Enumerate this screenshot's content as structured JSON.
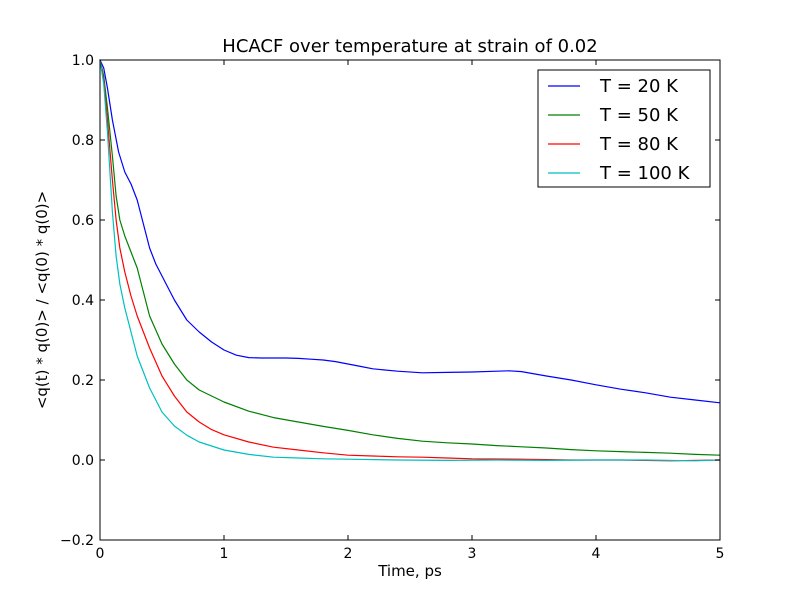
{
  "chart_data": {
    "type": "line",
    "title": "HCACF over temperature at strain of 0.02",
    "xlabel": "Time, ps",
    "ylabel": "<q(t) * q(0)> / <q(0) * q(0)>",
    "xlim": [
      0,
      5
    ],
    "ylim": [
      -0.2,
      1.0
    ],
    "xticks": [
      0,
      1,
      2,
      3,
      4,
      5
    ],
    "xtick_labels": [
      "0",
      "1",
      "2",
      "3",
      "4",
      "5"
    ],
    "yticks": [
      -0.2,
      0.0,
      0.2,
      0.4,
      0.6,
      0.8,
      1.0
    ],
    "ytick_labels": [
      "−0.2",
      "0.0",
      "0.2",
      "0.4",
      "0.6",
      "0.8",
      "1.0"
    ],
    "grid": false,
    "legend_position": "top-right",
    "series": [
      {
        "name": "T = 20 K",
        "color": "#0000ff",
        "x": [
          0,
          0.03,
          0.06,
          0.1,
          0.15,
          0.2,
          0.25,
          0.3,
          0.35,
          0.4,
          0.45,
          0.5,
          0.6,
          0.7,
          0.8,
          0.9,
          1.0,
          1.1,
          1.2,
          1.3,
          1.4,
          1.5,
          1.6,
          1.7,
          1.8,
          1.9,
          2.0,
          2.1,
          2.2,
          2.4,
          2.6,
          2.8,
          3.0,
          3.2,
          3.3,
          3.4,
          3.6,
          3.8,
          4.0,
          4.2,
          4.4,
          4.6,
          4.8,
          5.0
        ],
        "y": [
          1.0,
          0.98,
          0.93,
          0.85,
          0.77,
          0.72,
          0.69,
          0.65,
          0.59,
          0.53,
          0.49,
          0.46,
          0.4,
          0.35,
          0.32,
          0.295,
          0.275,
          0.262,
          0.256,
          0.255,
          0.255,
          0.255,
          0.254,
          0.252,
          0.25,
          0.246,
          0.24,
          0.234,
          0.228,
          0.222,
          0.218,
          0.219,
          0.22,
          0.222,
          0.223,
          0.221,
          0.21,
          0.2,
          0.188,
          0.177,
          0.168,
          0.157,
          0.15,
          0.143
        ]
      },
      {
        "name": "T = 50 K",
        "color": "#008000",
        "x": [
          0,
          0.03,
          0.06,
          0.1,
          0.13,
          0.16,
          0.2,
          0.25,
          0.3,
          0.35,
          0.4,
          0.5,
          0.6,
          0.7,
          0.8,
          0.9,
          1.0,
          1.2,
          1.4,
          1.6,
          1.8,
          2.0,
          2.2,
          2.4,
          2.6,
          2.8,
          3.0,
          3.2,
          3.4,
          3.6,
          3.8,
          4.0,
          4.2,
          4.4,
          4.6,
          4.8,
          5.0
        ],
        "y": [
          1.0,
          0.96,
          0.88,
          0.76,
          0.66,
          0.6,
          0.56,
          0.52,
          0.48,
          0.42,
          0.36,
          0.29,
          0.24,
          0.2,
          0.175,
          0.16,
          0.145,
          0.122,
          0.106,
          0.095,
          0.084,
          0.074,
          0.063,
          0.054,
          0.047,
          0.043,
          0.04,
          0.036,
          0.033,
          0.03,
          0.026,
          0.023,
          0.021,
          0.019,
          0.017,
          0.014,
          0.012
        ]
      },
      {
        "name": "T = 80 K",
        "color": "#ff0000",
        "x": [
          0,
          0.03,
          0.06,
          0.1,
          0.13,
          0.16,
          0.2,
          0.25,
          0.3,
          0.35,
          0.4,
          0.5,
          0.6,
          0.7,
          0.8,
          0.9,
          1.0,
          1.2,
          1.4,
          1.6,
          1.8,
          2.0,
          2.2,
          2.4,
          2.6,
          2.8,
          3.0,
          3.4,
          3.8,
          4.2,
          4.6,
          5.0
        ],
        "y": [
          1.0,
          0.95,
          0.85,
          0.7,
          0.6,
          0.53,
          0.47,
          0.41,
          0.36,
          0.32,
          0.28,
          0.21,
          0.16,
          0.12,
          0.095,
          0.076,
          0.063,
          0.045,
          0.032,
          0.025,
          0.018,
          0.012,
          0.01,
          0.008,
          0.007,
          0.005,
          0.003,
          0.002,
          0.0,
          0.0,
          -0.002,
          0.0
        ]
      },
      {
        "name": "T = 100 K",
        "color": "#00bfbf",
        "x": [
          0,
          0.03,
          0.06,
          0.1,
          0.13,
          0.16,
          0.2,
          0.25,
          0.3,
          0.35,
          0.4,
          0.5,
          0.6,
          0.7,
          0.8,
          0.9,
          1.0,
          1.2,
          1.4,
          1.6,
          1.8,
          2.0,
          2.4,
          2.8,
          3.2,
          3.6,
          4.0,
          4.4,
          4.8,
          5.0
        ],
        "y": [
          1.0,
          0.94,
          0.82,
          0.62,
          0.51,
          0.44,
          0.38,
          0.32,
          0.26,
          0.22,
          0.18,
          0.12,
          0.085,
          0.062,
          0.045,
          0.035,
          0.025,
          0.014,
          0.007,
          0.005,
          0.003,
          0.002,
          0.0,
          -0.001,
          0.0,
          -0.001,
          0.0,
          0.0,
          -0.002,
          0.0
        ]
      }
    ]
  }
}
